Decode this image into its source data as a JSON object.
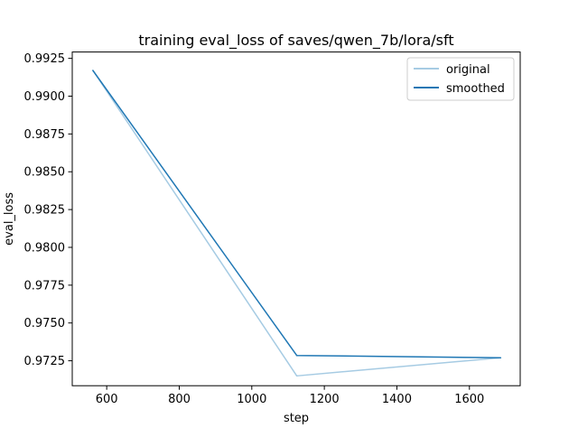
{
  "chart_data": {
    "type": "line",
    "title": "training eval_loss of saves/qwen_7b/lora/sft",
    "xlabel": "step",
    "ylabel": "eval_loss",
    "xlim": [
      505,
      1740
    ],
    "ylim": [
      0.97085,
      0.99292
    ],
    "xticks": [
      600,
      800,
      1000,
      1200,
      1400,
      1600
    ],
    "xtick_labels": [
      "600",
      "800",
      "1000",
      "1200",
      "1400",
      "1600"
    ],
    "yticks": [
      0.9725,
      0.975,
      0.9775,
      0.98,
      0.9825,
      0.985,
      0.9875,
      0.99,
      0.9925
    ],
    "ytick_labels": [
      "0.9725",
      "0.9750",
      "0.9775",
      "0.9800",
      "0.9825",
      "0.9850",
      "0.9875",
      "0.9900",
      "0.9925"
    ],
    "grid": false,
    "legend_position": "upper right",
    "series": [
      {
        "name": "original",
        "color": "#a6cbe3",
        "x": [
          562,
          1124,
          1686
        ],
        "y": [
          0.9917,
          0.9715,
          0.9727
        ]
      },
      {
        "name": "smoothed",
        "color": "#1f77b4",
        "x": [
          562,
          1124,
          1686
        ],
        "y": [
          0.9917,
          0.97285,
          0.9727
        ]
      }
    ]
  }
}
